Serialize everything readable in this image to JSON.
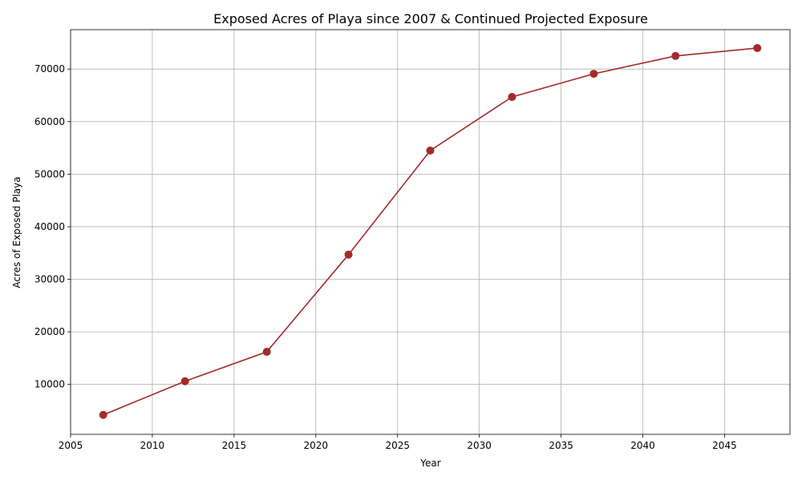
{
  "chart_data": {
    "type": "line",
    "title": "Exposed Acres of Playa since 2007 & Continued Projected Exposure",
    "xlabel": "Year",
    "ylabel": "Acres of Exposed Playa",
    "x": [
      2007,
      2012,
      2017,
      2022,
      2027,
      2032,
      2037,
      2042,
      2047
    ],
    "series": [
      {
        "values": [
          4200,
          10600,
          16200,
          34700,
          54500,
          64700,
          69100,
          72500,
          74000
        ],
        "color": "#a52a2a",
        "marker": "circle"
      }
    ],
    "xlim": [
      2005,
      2049
    ],
    "ylim": [
      500,
      77500
    ],
    "xticks": [
      2005,
      2010,
      2015,
      2020,
      2025,
      2030,
      2035,
      2040,
      2045
    ],
    "yticks": [
      10000,
      20000,
      30000,
      40000,
      50000,
      60000,
      70000
    ],
    "grid": true,
    "legend": "none"
  }
}
